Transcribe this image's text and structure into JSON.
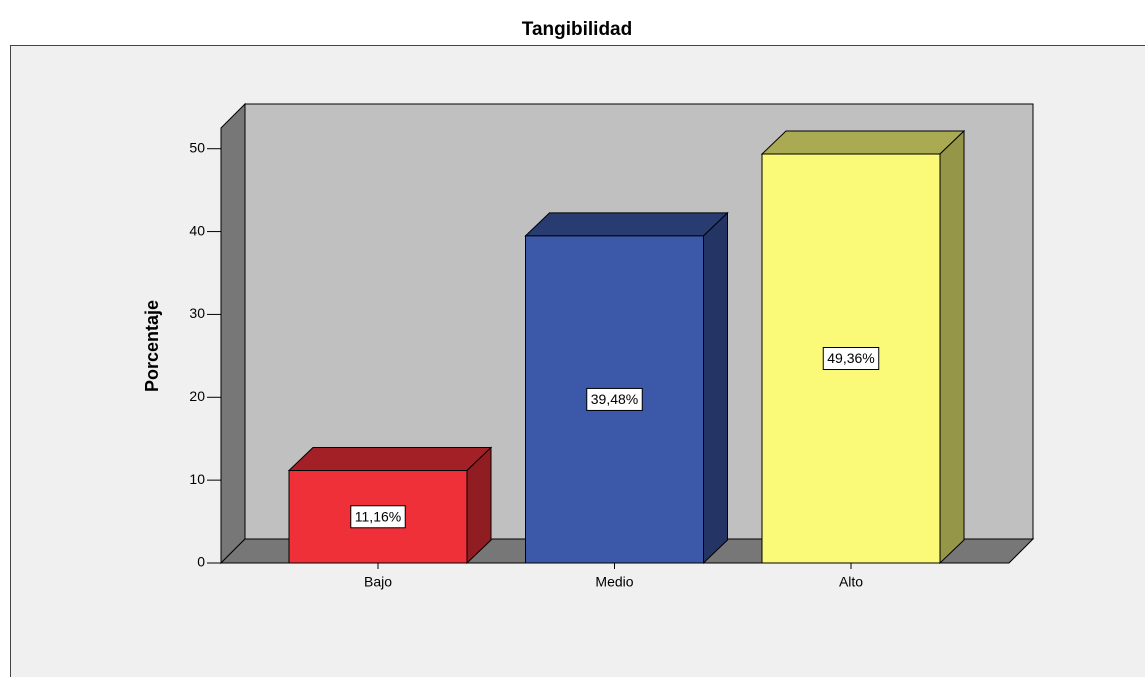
{
  "chart_data": {
    "type": "bar3d",
    "title": "Tangibilidad",
    "y_label": "Porcentaje",
    "categories": [
      "Bajo",
      "Medio",
      "Alto"
    ],
    "values": [
      11.16,
      39.48,
      49.36
    ],
    "value_labels": [
      "11,16%",
      "39,48%",
      "49,36%"
    ],
    "colors": [
      "#ef3038",
      "#3c58a8",
      "#fafa78"
    ],
    "ylim": [
      0,
      52.5
    ],
    "yticks": [
      0,
      10,
      20,
      30,
      40,
      50
    ]
  }
}
